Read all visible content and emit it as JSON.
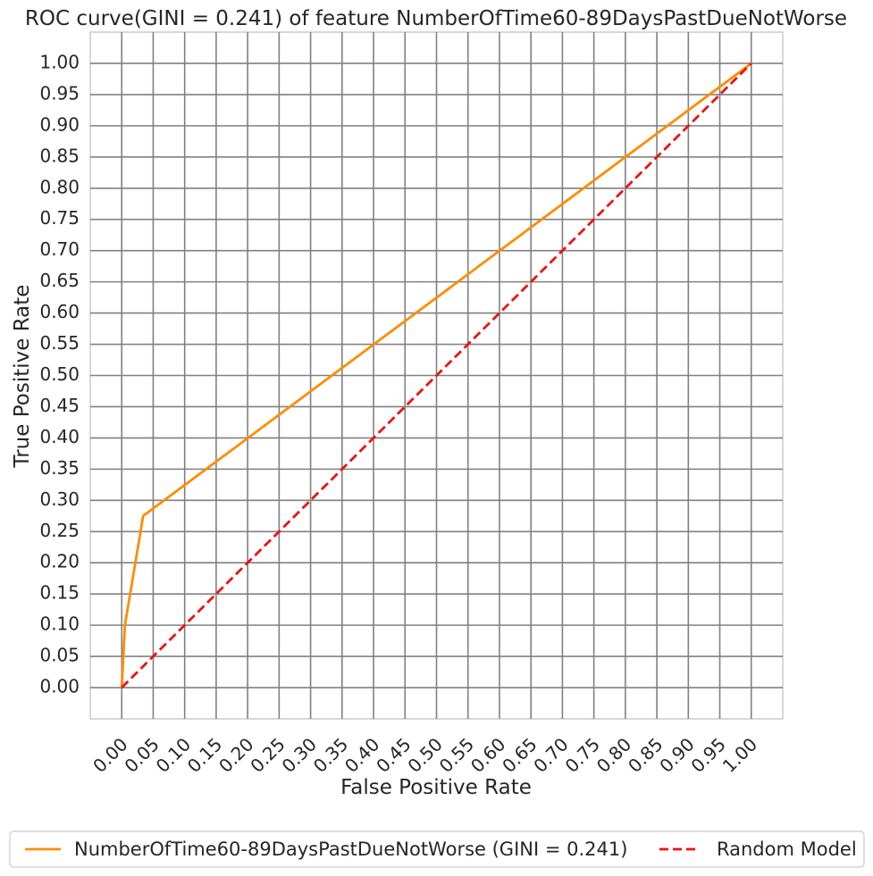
{
  "chart_data": {
    "type": "line",
    "title": "ROC curve(GINI = 0.241) of feature NumberOfTime60-89DaysPastDueNotWorse",
    "xlabel": "False Positive Rate",
    "ylabel": "True Positive Rate",
    "xlim": [
      -0.05,
      1.05
    ],
    "ylim": [
      -0.05,
      1.05
    ],
    "xticks": [
      "0.00",
      "0.05",
      "0.10",
      "0.15",
      "0.20",
      "0.25",
      "0.30",
      "0.35",
      "0.40",
      "0.45",
      "0.50",
      "0.55",
      "0.60",
      "0.65",
      "0.70",
      "0.75",
      "0.80",
      "0.85",
      "0.90",
      "0.95",
      "1.00"
    ],
    "yticks": [
      "0.00",
      "0.05",
      "0.10",
      "0.15",
      "0.20",
      "0.25",
      "0.30",
      "0.35",
      "0.40",
      "0.45",
      "0.50",
      "0.55",
      "0.60",
      "0.65",
      "0.70",
      "0.75",
      "0.80",
      "0.85",
      "0.90",
      "0.95",
      "1.00"
    ],
    "grid": true,
    "legend_position": "below",
    "series": [
      {
        "name": "NumberOfTime60-89DaysPastDueNotWorse (GINI = 0.241)",
        "color": "#ff8c00",
        "style": "solid",
        "x": [
          0.0,
          0.005,
          0.034,
          1.0
        ],
        "y": [
          0.0,
          0.1,
          0.275,
          1.0
        ]
      },
      {
        "name": "Random Model",
        "color": "#ee1111",
        "style": "dashed",
        "x": [
          0.0,
          1.0
        ],
        "y": [
          0.0,
          1.0
        ]
      }
    ]
  }
}
